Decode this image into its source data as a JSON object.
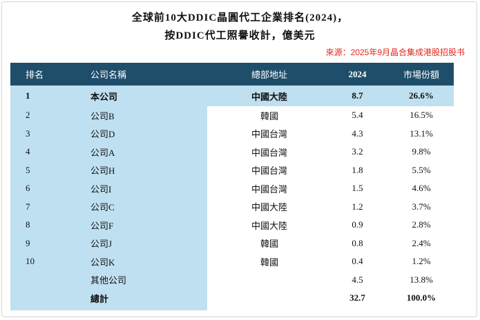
{
  "title_line1": "全球前10大DDIC晶圓代工企業排名(2024)，",
  "title_line2": "按DDIC代工照譽收計，億美元",
  "source": "來源：2025年9月晶合集成港股招股书",
  "headers": {
    "rank": "排名",
    "company": "公司名稱",
    "hq": "總部地址",
    "value": "2024",
    "share": "市場份額"
  },
  "rows": [
    {
      "rank": "1",
      "company": "本公司",
      "hq": "中國大陸",
      "value": "8.7",
      "share": "26.6%"
    },
    {
      "rank": "2",
      "company": "公司B",
      "hq": "韓國",
      "value": "5.4",
      "share": "16.5%"
    },
    {
      "rank": "3",
      "company": "公司D",
      "hq": "中國台灣",
      "value": "4.3",
      "share": "13.1%"
    },
    {
      "rank": "4",
      "company": "公司A",
      "hq": "中國台灣",
      "value": "3.2",
      "share": "9.8%"
    },
    {
      "rank": "5",
      "company": "公司H",
      "hq": "中國台灣",
      "value": "1.8",
      "share": "5.5%"
    },
    {
      "rank": "6",
      "company": "公司I",
      "hq": "中國台灣",
      "value": "1.5",
      "share": "4.6%"
    },
    {
      "rank": "7",
      "company": "公司C",
      "hq": "中國大陸",
      "value": "1.2",
      "share": "3.7%"
    },
    {
      "rank": "8",
      "company": "公司F",
      "hq": "中國大陸",
      "value": "0.9",
      "share": "2.8%"
    },
    {
      "rank": "9",
      "company": "公司J",
      "hq": "韓國",
      "value": "0.8",
      "share": "2.4%"
    },
    {
      "rank": "10",
      "company": "公司K",
      "hq": "韓國",
      "value": "0.4",
      "share": "1.2%"
    },
    {
      "rank": "",
      "company": "其他公司",
      "hq": "",
      "value": "4.5",
      "share": "13.8%"
    },
    {
      "rank": "",
      "company": "總計",
      "hq": "",
      "value": "32.7",
      "share": "100.0%"
    }
  ],
  "colors": {
    "header_bg": "#1f4e6b",
    "highlight_bg": "#bfe0f0",
    "source_text": "#e0261b"
  }
}
